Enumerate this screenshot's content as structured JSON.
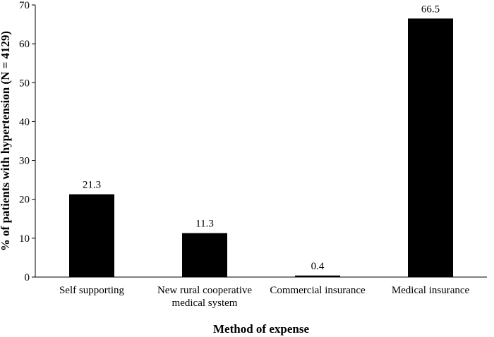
{
  "chart_data": {
    "type": "bar",
    "categories": [
      [
        "Self supporting"
      ],
      [
        "New rural cooperative",
        "medical system"
      ],
      [
        "Commercial insurance"
      ],
      [
        "Medical insurance"
      ]
    ],
    "values": [
      21.3,
      11.3,
      0.4,
      66.5
    ],
    "value_labels": [
      "21.3",
      "11.3",
      "0.4",
      "66.5"
    ],
    "title": "",
    "xlabel": "Method of expense",
    "ylabel": "% of patients with hypertension (N = 4129)",
    "ylim": [
      0,
      70
    ],
    "yticks": [
      0,
      10,
      20,
      30,
      40,
      50,
      60,
      70
    ],
    "bar_color": "#000000",
    "grid": false,
    "legend": "none"
  }
}
